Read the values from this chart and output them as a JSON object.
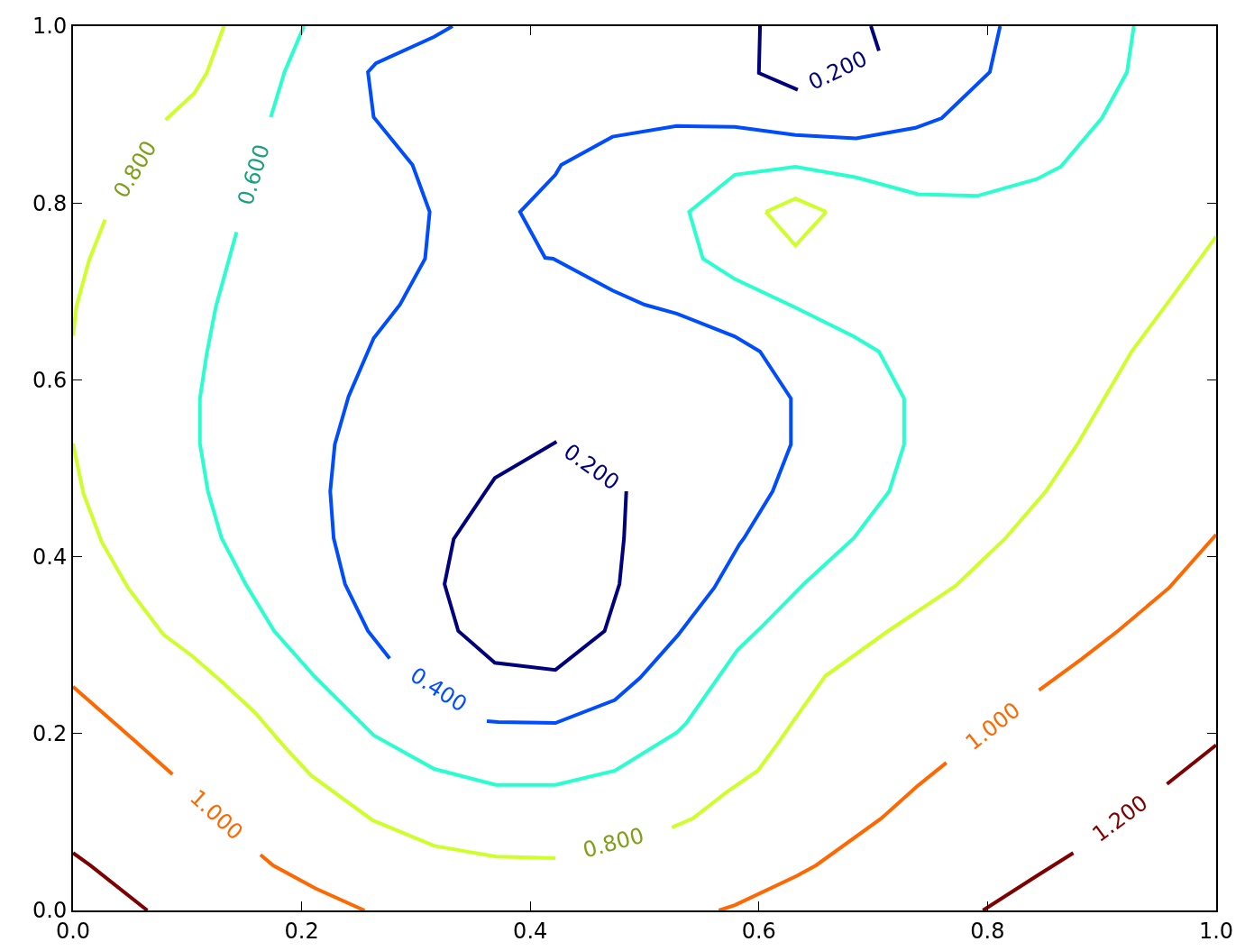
{
  "chart_data": {
    "type": "line",
    "xlim": [
      0,
      1
    ],
    "ylim": [
      0,
      1
    ],
    "xticks": [
      {
        "value": 0,
        "label": "0.0"
      },
      {
        "value": 0.2,
        "label": "0.2"
      },
      {
        "value": 0.4,
        "label": "0.4"
      },
      {
        "value": 0.6,
        "label": "0.6"
      },
      {
        "value": 0.8,
        "label": "0.8"
      },
      {
        "value": 1,
        "label": "1.0"
      }
    ],
    "yticks": [
      {
        "value": 0,
        "label": "0.0"
      },
      {
        "value": 0.2,
        "label": "0.2"
      },
      {
        "value": 0.4,
        "label": "0.4"
      },
      {
        "value": 0.6,
        "label": "0.6"
      },
      {
        "value": 0.8,
        "label": "0.8"
      },
      {
        "value": 1,
        "label": "1.0"
      }
    ],
    "grid": false,
    "legend": false,
    "marker": "none",
    "line_style": "solid",
    "series": [
      {
        "color": "#7f0000",
        "x": [
          0,
          0.015,
          0.065
        ],
        "values": [
          0.065,
          0.051,
          0
        ]
      },
      {
        "name": "1.200",
        "color": "#7f0000",
        "x": [
          0.796,
          0.843,
          0.875,
          null,
          0.957,
          1
        ],
        "values": [
          0,
          0.039,
          0.065,
          null,
          0.143,
          0.187
        ]
      },
      {
        "name": "1.000",
        "color": "#ff6800",
        "x": [
          0,
          0.054,
          0.087,
          null,
          0.164,
          0.175,
          0.212,
          0.255
        ],
        "values": [
          0.253,
          0.192,
          0.154,
          null,
          0.063,
          0.051,
          0.025,
          0
        ]
      },
      {
        "name": "1.000",
        "color": "#ff6800",
        "x": [
          0.565,
          0.579,
          0.633,
          0.65,
          0.707,
          0.738,
          0.764,
          null,
          0.845,
          0.882,
          0.914,
          0.959,
          1
        ],
        "values": [
          0,
          0.006,
          0.039,
          0.051,
          0.104,
          0.14,
          0.167,
          null,
          0.249,
          0.284,
          0.316,
          0.365,
          0.425
        ]
      },
      {
        "name": "0.800",
        "color": "#ceff29",
        "x": [
          0,
          0.003,
          0.014,
          0.028,
          null,
          0.081,
          0.106,
          0.117,
          0.132
        ],
        "values": [
          0.65,
          0.683,
          0.735,
          0.781,
          null,
          0.894,
          0.924,
          0.947,
          1
        ]
      },
      {
        "name": "0.800",
        "color": "#ceff29",
        "x": [
          0,
          0.009,
          0.025,
          0.048,
          0.079,
          0.104,
          0.129,
          0.159,
          0.183,
          0.208,
          0.262,
          0.316,
          0.37,
          0.422,
          null,
          0.524,
          0.542,
          0.573,
          0.599,
          0.616,
          0.63,
          0.658,
          0.713,
          0.772,
          0.815,
          0.851,
          0.879,
          0.926,
          0.961,
          1
        ],
        "values": [
          0.528,
          0.472,
          0.417,
          0.365,
          0.312,
          0.288,
          0.26,
          0.224,
          0.188,
          0.153,
          0.102,
          0.073,
          0.061,
          0.059,
          null,
          0.094,
          0.104,
          0.135,
          0.158,
          0.188,
          0.214,
          0.265,
          0.316,
          0.367,
          0.42,
          0.474,
          0.528,
          0.632,
          0.693,
          0.762
        ]
      },
      {
        "color": "#ceff29",
        "x": [
          0.606,
          0.632,
          0.659
        ],
        "values": [
          0.79,
          0.805,
          0.79
        ]
      },
      {
        "color": "#ceff29",
        "x": [
          0.606,
          0.632,
          0.659
        ],
        "values": [
          0.79,
          0.752,
          0.79
        ]
      },
      {
        "name": "0.600",
        "color": "#29ffce",
        "x": [
          0.202,
          0.185,
          0.173,
          null,
          0.143,
          0.125,
          0.117,
          0.111,
          0.111,
          0.118,
          0.13,
          0.151,
          0.176,
          0.211,
          0.263,
          0.316,
          0.37,
          0.422,
          0.474,
          0.528,
          0.536,
          0.581,
          0.601,
          0.63,
          0.64,
          0.683,
          0.714,
          0.727,
          0.727,
          0.705,
          0.683,
          0.63,
          0.579,
          0.551,
          0.539,
          0.579,
          0.632,
          0.685,
          0.739,
          0.791,
          0.843,
          0.864,
          0.9,
          0.922,
          0.928
        ],
        "values": [
          1,
          0.948,
          0.897,
          null,
          0.767,
          0.683,
          0.63,
          0.579,
          0.528,
          0.474,
          0.421,
          0.369,
          0.316,
          0.265,
          0.198,
          0.16,
          0.142,
          0.142,
          0.158,
          0.201,
          0.211,
          0.294,
          0.319,
          0.357,
          0.37,
          0.421,
          0.474,
          0.527,
          0.579,
          0.632,
          0.649,
          0.683,
          0.714,
          0.737,
          0.79,
          0.832,
          0.841,
          0.829,
          0.81,
          0.808,
          0.827,
          0.841,
          0.896,
          0.948,
          1
        ]
      },
      {
        "name": "0.400",
        "color": "#004cff",
        "x": [
          0.332,
          0.316,
          0.265,
          0.258,
          0.263,
          0.297,
          0.312,
          0.308,
          0.286,
          0.263,
          0.241,
          0.229,
          0.225,
          0.228,
          0.238,
          0.258,
          0.277,
          null,
          0.362,
          0.372,
          0.422,
          0.474,
          0.496,
          0.529,
          0.561,
          0.583,
          0.587,
          0.612,
          0.628,
          0.628,
          0.601,
          0.579,
          0.528,
          0.5,
          0.472,
          0.42,
          0.413,
          0.391,
          0.422,
          0.427,
          0.472,
          0.528,
          0.579,
          0.632,
          0.685,
          0.737,
          0.76,
          0.802,
          0.811
        ],
        "values": [
          1,
          0.988,
          0.958,
          0.948,
          0.897,
          0.843,
          0.79,
          0.737,
          0.685,
          0.647,
          0.581,
          0.527,
          0.474,
          0.421,
          0.369,
          0.316,
          0.285,
          null,
          0.214,
          0.213,
          0.212,
          0.238,
          0.263,
          0.311,
          0.365,
          0.414,
          0.421,
          0.474,
          0.527,
          0.579,
          0.632,
          0.649,
          0.675,
          0.685,
          0.701,
          0.737,
          0.738,
          0.79,
          0.832,
          0.843,
          0.875,
          0.887,
          0.886,
          0.877,
          0.873,
          0.885,
          0.896,
          0.948,
          1
        ]
      },
      {
        "name": "0.200",
        "color": "#00007f",
        "x": [
          0.423,
          0.369,
          0.361,
          0.333,
          0.325,
          0.337,
          0.369,
          0.422,
          0.465,
          0.478,
          0.482,
          0.484
        ],
        "values": [
          0.53,
          0.489,
          0.474,
          0.42,
          0.369,
          0.316,
          0.28,
          0.272,
          0.316,
          0.369,
          0.421,
          0.474
        ]
      },
      {
        "name": "0.200",
        "color": "#00007f",
        "x": [
          0.601,
          0.6,
          0.634,
          null,
          0.705,
          0.698
        ],
        "values": [
          1,
          0.947,
          0.928,
          null,
          0.972,
          1
        ]
      }
    ]
  }
}
